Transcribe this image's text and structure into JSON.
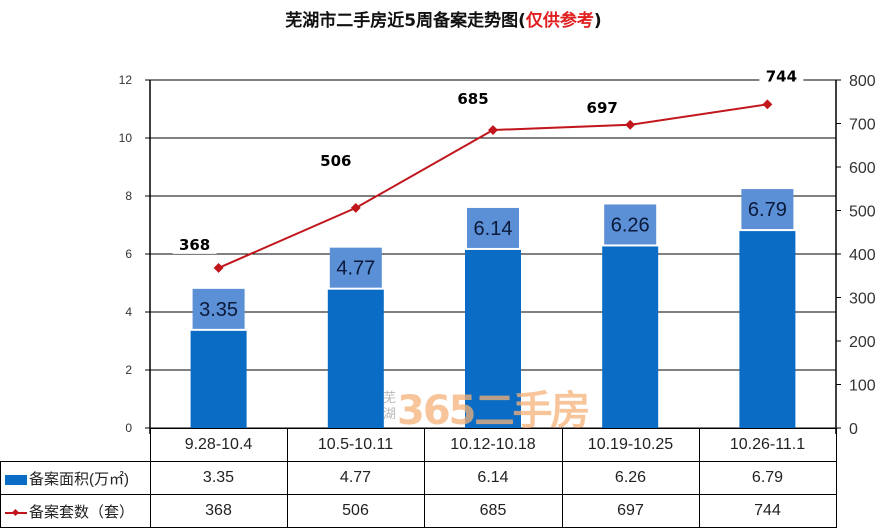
{
  "title": {
    "main": "芜湖市二手房近5周备案走势图(",
    "highlight": "仅供参考",
    "close": ")",
    "highlight_color": "#e02020"
  },
  "watermark": {
    "city": "芜湖",
    "brand": "365二手房"
  },
  "axes": {
    "left_ticks": [
      "0",
      "2",
      "4",
      "6",
      "8",
      "10",
      "12"
    ],
    "right_ticks": [
      "0",
      "100",
      "200",
      "300",
      "400",
      "500",
      "600",
      "700",
      "800"
    ]
  },
  "table": {
    "categories": [
      "9.28-10.4",
      "10.5-10.11",
      "10.12-10.18",
      "10.19-10.25",
      "10.26-11.1"
    ],
    "rows": [
      {
        "label": "备案面积(万㎡)",
        "values": [
          "3.35",
          "4.77",
          "6.14",
          "6.26",
          "6.79"
        ]
      },
      {
        "label": "备案套数（套）",
        "values": [
          "368",
          "506",
          "685",
          "697",
          "744"
        ]
      }
    ]
  },
  "colors": {
    "bar": "#0a6cc4",
    "bar_label_bg": "#5b8fd6",
    "line": "#c0161c"
  },
  "chart_data": {
    "type": "bar+line",
    "title": "芜湖市二手房近5周备案走势图(仅供参考)",
    "categories": [
      "9.28-10.4",
      "10.5-10.11",
      "10.12-10.18",
      "10.19-10.25",
      "10.26-11.1"
    ],
    "series": [
      {
        "name": "备案面积(万㎡)",
        "type": "bar",
        "axis": "left",
        "values": [
          3.35,
          4.77,
          6.14,
          6.26,
          6.79
        ],
        "labels": [
          "3.35",
          "4.77",
          "6.14",
          "6.26",
          "6.79"
        ]
      },
      {
        "name": "备案套数（套）",
        "type": "line",
        "axis": "right",
        "values": [
          368,
          506,
          685,
          697,
          744
        ],
        "labels": [
          "368",
          "506",
          "685",
          "697",
          "744"
        ]
      }
    ],
    "ylim_left": [
      0,
      12
    ],
    "ylim_right": [
      0,
      800
    ],
    "left_tick_step": 2,
    "right_tick_step": 100,
    "grid": true,
    "legend_position": "data-table"
  }
}
